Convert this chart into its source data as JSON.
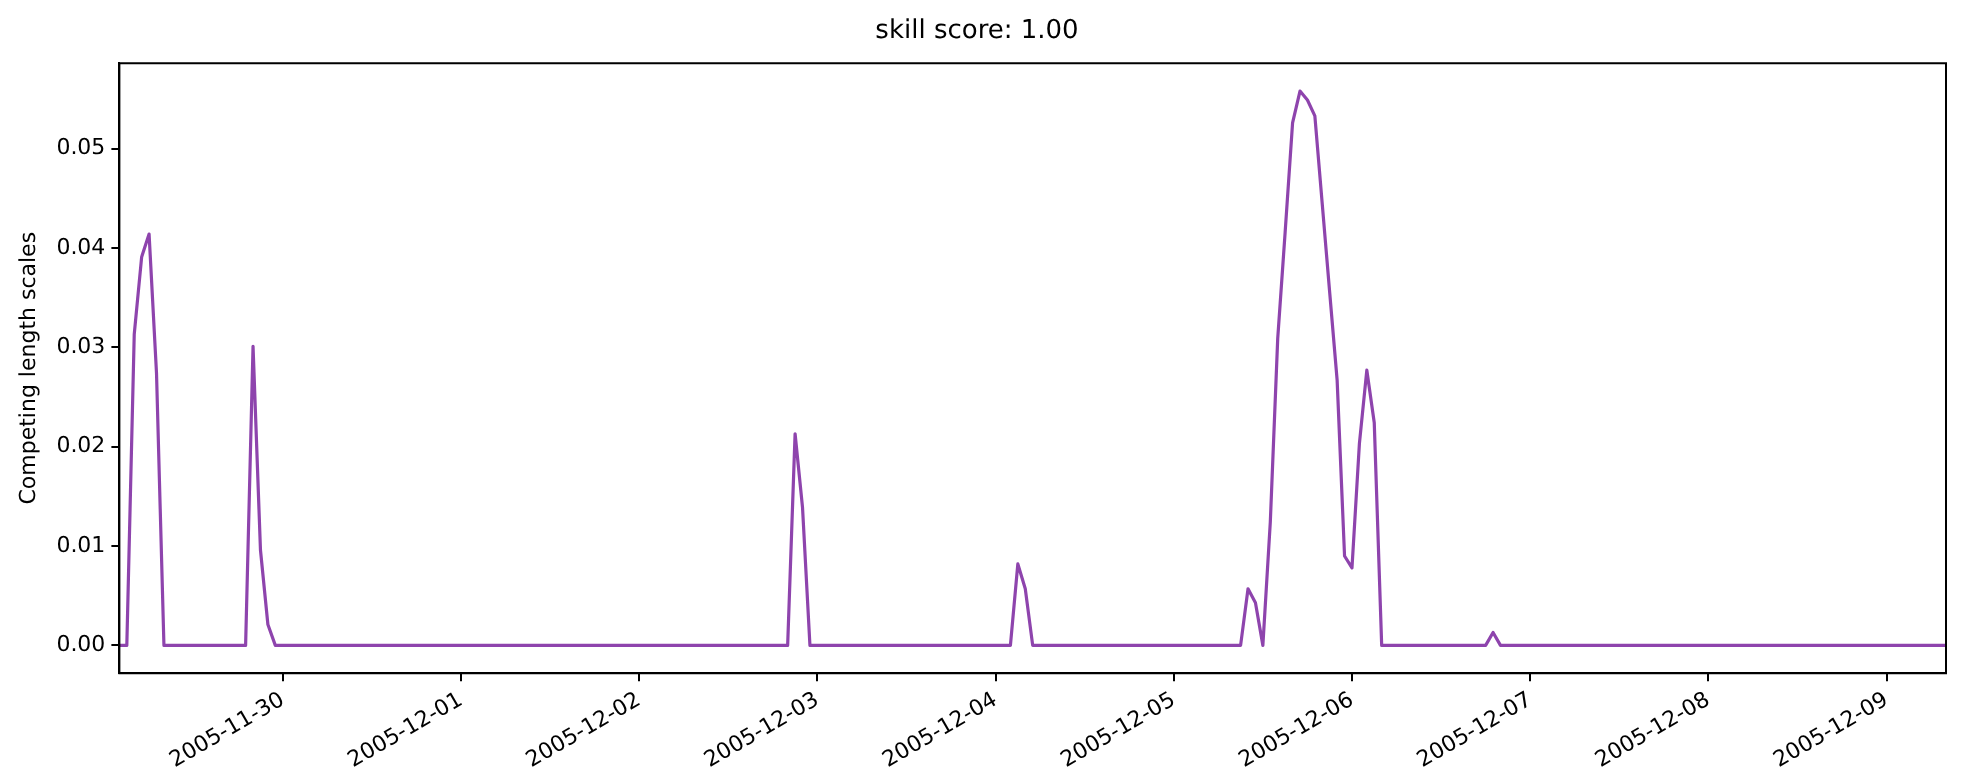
{
  "chart_data": {
    "type": "line",
    "title": "skill score: 1.00",
    "ylabel": "Competing length scales",
    "xlim": [
      "2005-11-29T02:00",
      "2005-12-09T08:00"
    ],
    "xticks": [
      "2005-11-30",
      "2005-12-01",
      "2005-12-02",
      "2005-12-03",
      "2005-12-04",
      "2005-12-05",
      "2005-12-06",
      "2005-12-07",
      "2005-12-08",
      "2005-12-09"
    ],
    "ylim": [
      -0.0028,
      0.0586
    ],
    "yticks": [
      {
        "value": 0,
        "label": "0.00"
      },
      {
        "value": 0.01,
        "label": "0.01"
      },
      {
        "value": 0.02,
        "label": "0.02"
      },
      {
        "value": 0.03,
        "label": "0.03"
      },
      {
        "value": 0.04,
        "label": "0.04"
      },
      {
        "value": 0.05,
        "label": "0.05"
      }
    ],
    "grid": false,
    "legend": false,
    "marker": "none",
    "line_style": "solid",
    "series": [
      {
        "color": "#8e44ad",
        "x": [
          "2005-11-29T02:00",
          "2005-11-29T03:00",
          "2005-11-29T04:00",
          "2005-11-29T05:00",
          "2005-11-29T06:00",
          "2005-11-29T07:00",
          "2005-11-29T08:00",
          "2005-11-29T19:00",
          "2005-11-29T20:00",
          "2005-11-29T21:00",
          "2005-11-29T22:00",
          "2005-11-29T23:00",
          "2005-12-02T20:00",
          "2005-12-02T21:00",
          "2005-12-02T22:00",
          "2005-12-02T23:00",
          "2005-12-04T02:00",
          "2005-12-04T03:00",
          "2005-12-04T04:00",
          "2005-12-04T05:00",
          "2005-12-05T09:00",
          "2005-12-05T10:00",
          "2005-12-05T11:00",
          "2005-12-05T12:00",
          "2005-12-05T13:00",
          "2005-12-05T14:00",
          "2005-12-05T15:00",
          "2005-12-05T16:00",
          "2005-12-05T17:00",
          "2005-12-05T18:00",
          "2005-12-05T19:00",
          "2005-12-05T20:00",
          "2005-12-05T21:00",
          "2005-12-05T22:00",
          "2005-12-05T23:00",
          "2005-12-06T00:00",
          "2005-12-06T01:00",
          "2005-12-06T02:00",
          "2005-12-06T03:00",
          "2005-12-06T04:00",
          "2005-12-06T18:00",
          "2005-12-06T19:00",
          "2005-12-06T20:00",
          "2005-12-09T08:00"
        ],
        "values": [
          0,
          0,
          0.0313,
          0.0391,
          0.0414,
          0.0274,
          0,
          0,
          0.0301,
          0.0096,
          0.0021,
          0,
          0,
          0.0213,
          0.0139,
          0,
          0,
          0.0082,
          0.0057,
          0,
          0,
          0.0057,
          0.0043,
          0,
          0.0124,
          0.0309,
          0.0416,
          0.0526,
          0.0558,
          0.0549,
          0.0533,
          0.0444,
          0.0355,
          0.0267,
          0.009,
          0.0078,
          0.0203,
          0.0277,
          0.0224,
          0,
          0,
          0.0013,
          0,
          0
        ]
      }
    ]
  }
}
